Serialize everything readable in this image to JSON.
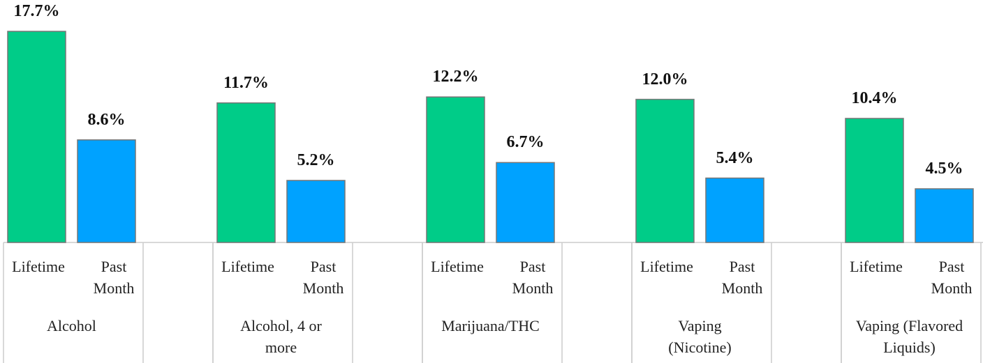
{
  "chart_data": {
    "type": "bar",
    "categories": [
      "Alcohol",
      "Alcohol, 4 or more",
      "Marijuana/THC",
      "Vaping (Nicotine)",
      "Vaping (Flavored Liquids)"
    ],
    "series": [
      {
        "name": "Lifetime",
        "color": "#00cc88",
        "values": [
          17.7,
          11.7,
          12.2,
          12.0,
          10.4
        ],
        "value_labels": [
          "17.7%",
          "11.7%",
          "12.2%",
          "12.0%",
          "10.4%"
        ]
      },
      {
        "name": "Past Month",
        "color": "#00a2ff",
        "values": [
          8.6,
          5.2,
          6.7,
          5.4,
          4.5
        ],
        "value_labels": [
          "8.6%",
          "5.2%",
          "6.7%",
          "5.4%",
          "4.5%"
        ]
      }
    ]
  }
}
